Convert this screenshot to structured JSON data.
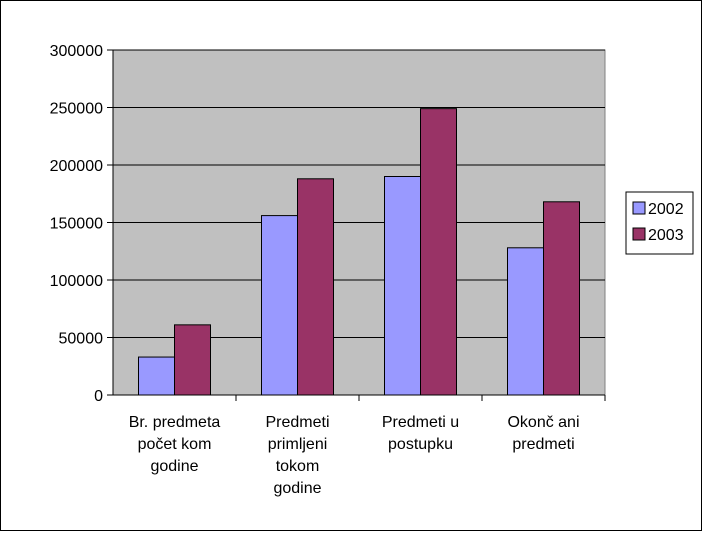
{
  "chart_data": {
    "type": "bar",
    "title": "",
    "xlabel": "",
    "ylabel": "",
    "categories": [
      [
        "Br. predmeta",
        "počet kom",
        "godine"
      ],
      [
        "Predmeti",
        "primljeni",
        "tokom",
        "godine"
      ],
      [
        "Predmeti u",
        "postupku"
      ],
      [
        "Okonč ani",
        "predmeti"
      ]
    ],
    "series": [
      {
        "name": "2002",
        "values": [
          33000,
          156000,
          190000,
          128000
        ],
        "color": "#9999ff"
      },
      {
        "name": "2003",
        "values": [
          61000,
          188000,
          249000,
          168000
        ],
        "color": "#993366"
      }
    ],
    "ylim": [
      0,
      300000
    ],
    "yticks": [
      "0",
      "50000",
      "100000",
      "150000",
      "200000",
      "250000",
      "300000"
    ],
    "grid": true,
    "plot_background": "#c0c0c0",
    "legend_position": "right"
  }
}
